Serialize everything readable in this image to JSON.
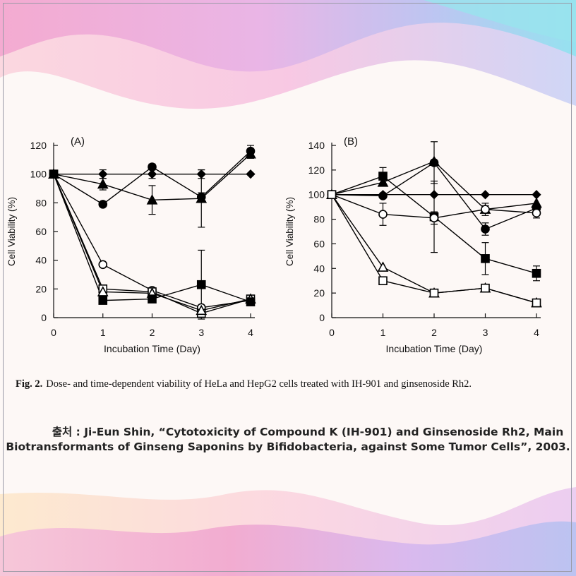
{
  "caption": {
    "label": "Fig. 2.",
    "text": "Dose- and time-dependent viability of HeLa and HepG2 cells treated with IH-901 and ginsenoside Rh2."
  },
  "source": {
    "line1": "출처 : Ji-Eun Shin, “Cytotoxicity of Compound K (IH-901) and Ginsenoside Rh2, Main",
    "line2": "Biotransformants of Ginseng Saponins by Bifidobacteria, against Some Tumor Cells”, 2003."
  },
  "colors": {
    "background": "#fdf8f6",
    "marker": "#000000"
  },
  "chart_data": [
    {
      "type": "line",
      "panel_label": "(A)",
      "xlabel": "Incubation Time (Day)",
      "ylabel": "Cell Viability (%)",
      "x": [
        0,
        1,
        2,
        3,
        4
      ],
      "xlim": [
        0,
        4
      ],
      "ylim": [
        0,
        120
      ],
      "yticks": [
        0,
        20,
        40,
        60,
        80,
        100,
        120
      ],
      "grid": false,
      "series": [
        {
          "marker": "diamond-filled",
          "values": [
            100,
            100,
            100,
            100,
            100
          ],
          "err": [
            0,
            3,
            3,
            3,
            0
          ]
        },
        {
          "marker": "circle-filled",
          "values": [
            100,
            79,
            105,
            84,
            116
          ],
          "err": [
            0,
            0,
            2,
            3,
            4
          ]
        },
        {
          "marker": "triangle-filled",
          "values": [
            100,
            93,
            82,
            83,
            114
          ],
          "err": [
            0,
            4,
            10,
            20,
            3
          ]
        },
        {
          "marker": "circle-open",
          "values": [
            100,
            37,
            19,
            7,
            12
          ],
          "err": [
            0,
            0,
            0,
            0,
            0
          ]
        },
        {
          "marker": "square-open",
          "values": [
            100,
            20,
            18,
            3,
            13
          ],
          "err": [
            0,
            0,
            2,
            2,
            0
          ]
        },
        {
          "marker": "triangle-open",
          "values": [
            100,
            18,
            17,
            5,
            13
          ],
          "err": [
            0,
            0,
            0,
            0,
            0
          ]
        },
        {
          "marker": "square-filled",
          "values": [
            100,
            12,
            13,
            23,
            11
          ],
          "err": [
            0,
            0,
            0,
            24,
            0
          ]
        }
      ]
    },
    {
      "type": "line",
      "panel_label": "(B)",
      "xlabel": "Incubation Time (Day)",
      "ylabel": "Cell Viability (%)",
      "x": [
        0,
        1,
        2,
        3,
        4
      ],
      "xlim": [
        0,
        4
      ],
      "ylim": [
        0,
        140
      ],
      "yticks": [
        0,
        20,
        40,
        60,
        80,
        100,
        120,
        140
      ],
      "grid": false,
      "series": [
        {
          "marker": "diamond-filled",
          "values": [
            100,
            100,
            100,
            100,
            100
          ],
          "err": [
            0,
            0,
            0,
            0,
            0
          ]
        },
        {
          "marker": "circle-filled",
          "values": [
            100,
            99,
            126,
            72,
            89
          ],
          "err": [
            0,
            0,
            17,
            5,
            3
          ]
        },
        {
          "marker": "triangle-filled",
          "values": [
            100,
            110,
            127,
            88,
            93
          ],
          "err": [
            0,
            0,
            0,
            5,
            0
          ]
        },
        {
          "marker": "square-filled",
          "values": [
            100,
            115,
            82,
            48,
            36
          ],
          "err": [
            0,
            7,
            29,
            13,
            6
          ]
        },
        {
          "marker": "circle-open",
          "values": [
            100,
            84,
            81,
            88,
            85
          ],
          "err": [
            0,
            9,
            5,
            3,
            4
          ]
        },
        {
          "marker": "triangle-open",
          "values": [
            100,
            41,
            20,
            24,
            12
          ],
          "err": [
            0,
            0,
            0,
            0,
            0
          ]
        },
        {
          "marker": "square-open",
          "values": [
            100,
            30,
            20,
            24,
            12
          ],
          "err": [
            0,
            2,
            0,
            2,
            0
          ]
        }
      ]
    }
  ]
}
